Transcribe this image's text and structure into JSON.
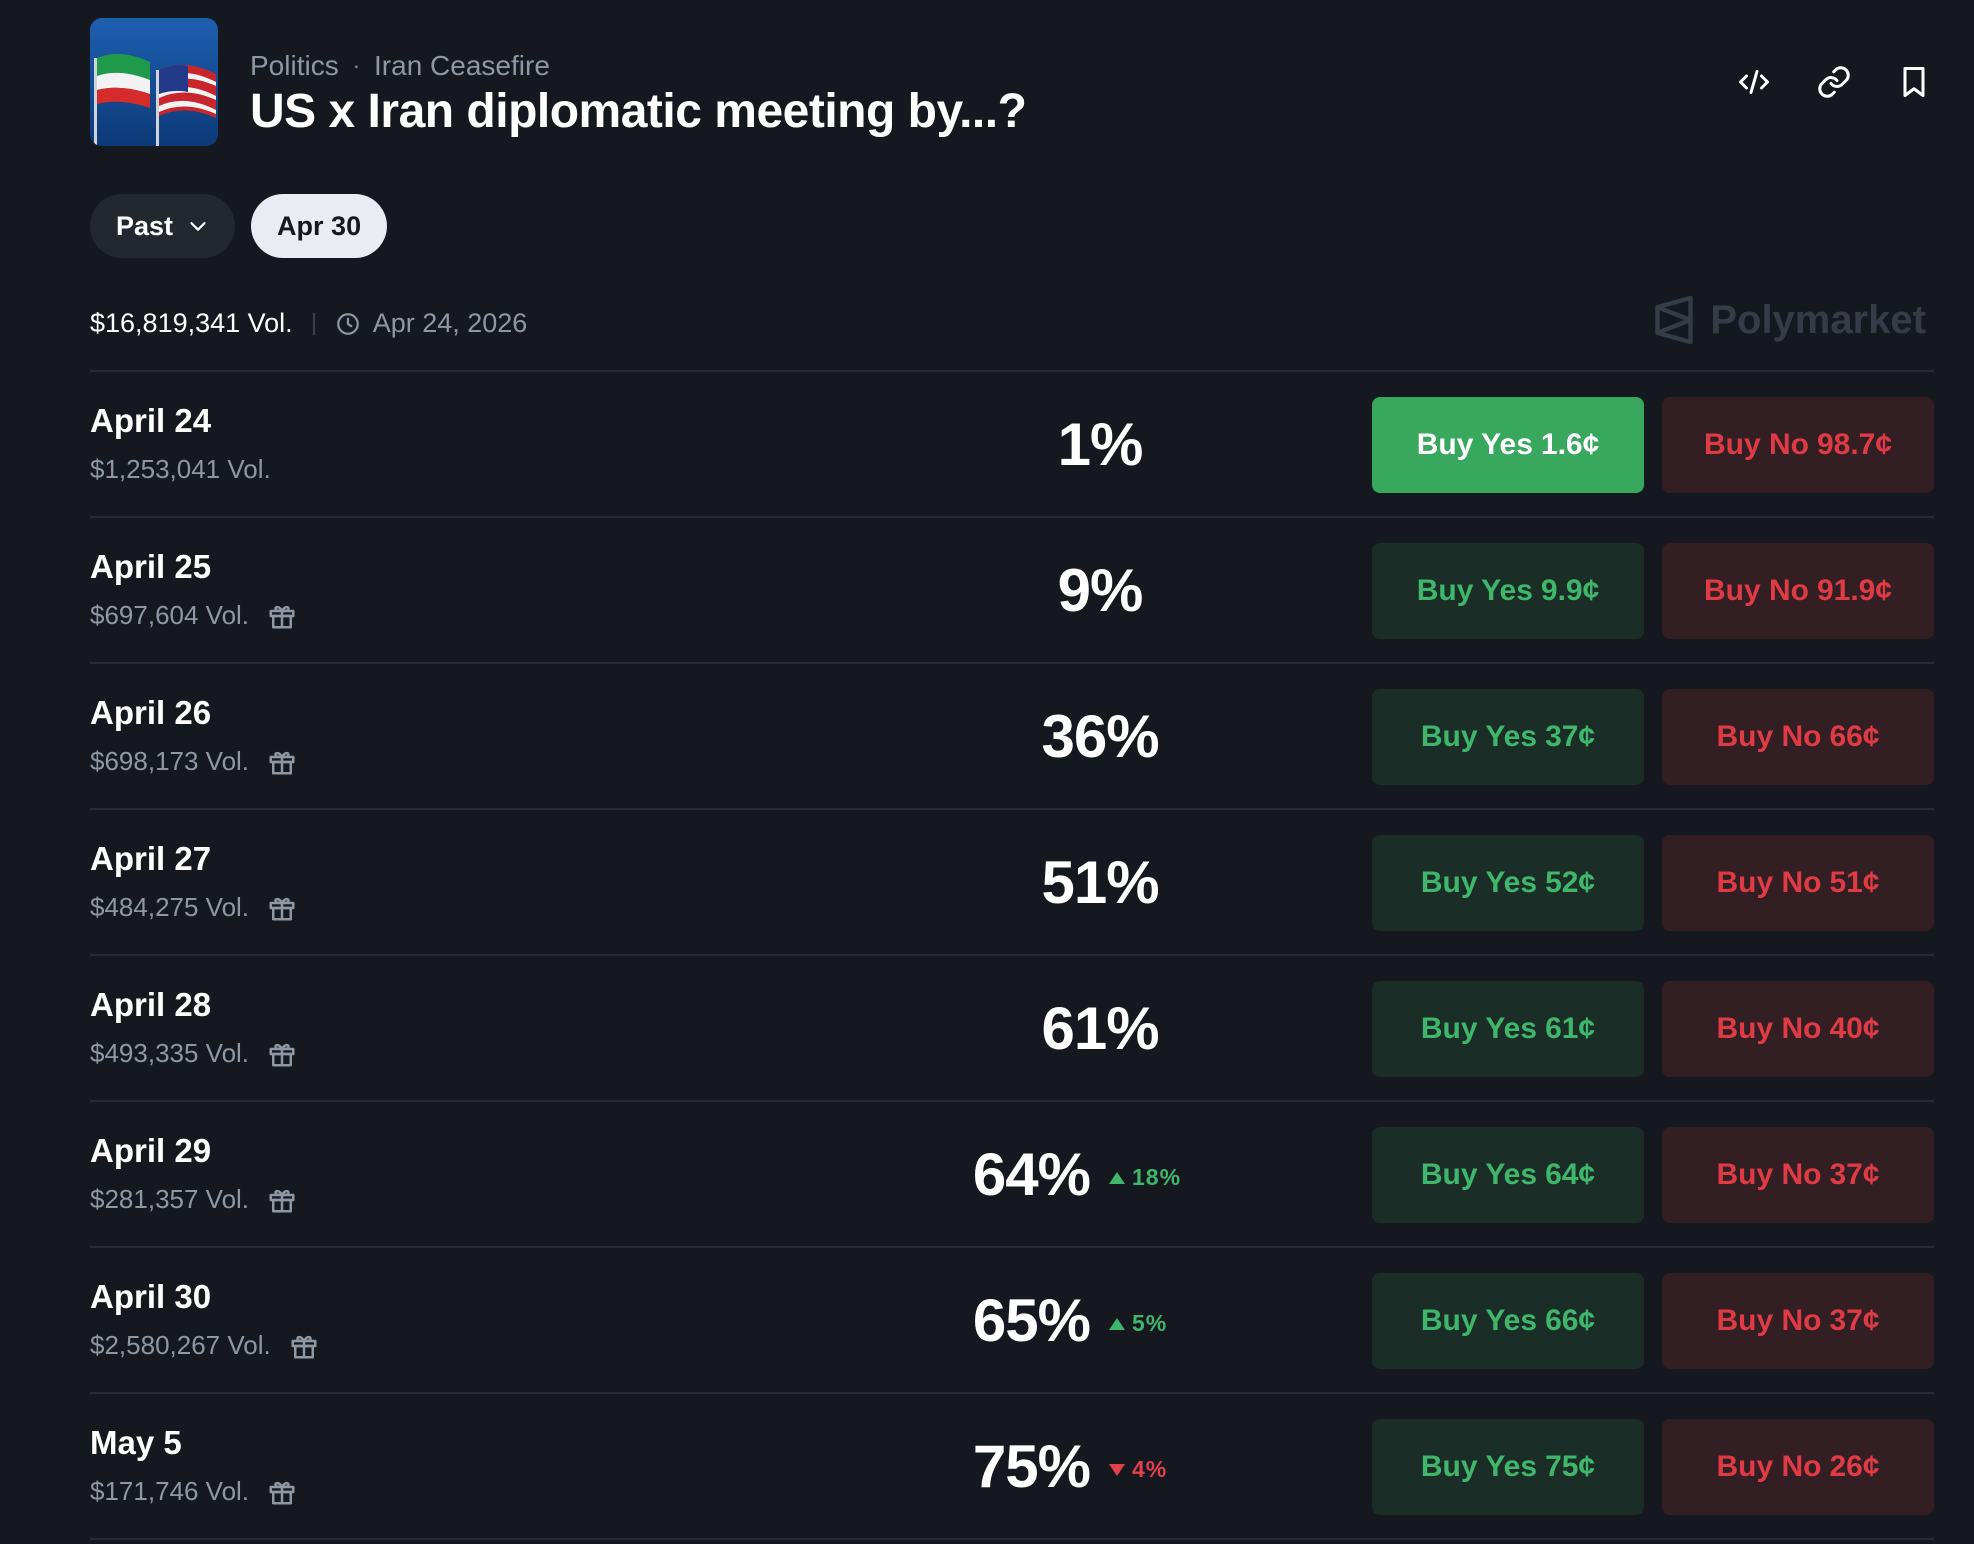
{
  "breadcrumb": {
    "category": "Politics",
    "subcategory": "Iran Ceasefire"
  },
  "title": "US x Iran diplomatic meeting by...?",
  "filters": {
    "past_label": "Past",
    "selected_label": "Apr 30"
  },
  "meta": {
    "volume": "$16,819,341 Vol.",
    "date": "Apr 24, 2026"
  },
  "brand": "Polymarket",
  "rows": [
    {
      "label": "April 24",
      "volume": "$1,253,041 Vol.",
      "prob": "1%",
      "change": "",
      "yes_price": "1.6¢",
      "no_price": "98.7¢"
    },
    {
      "label": "April 25",
      "volume": "$697,604 Vol.",
      "prob": "9%",
      "change": "",
      "yes_price": "9.9¢",
      "no_price": "91.9¢"
    },
    {
      "label": "April 26",
      "volume": "$698,173 Vol.",
      "prob": "36%",
      "change": "",
      "yes_price": "37¢",
      "no_price": "66¢"
    },
    {
      "label": "April 27",
      "volume": "$484,275 Vol.",
      "prob": "51%",
      "change": "",
      "yes_price": "52¢",
      "no_price": "51¢"
    },
    {
      "label": "April 28",
      "volume": "$493,335 Vol.",
      "prob": "61%",
      "change": "",
      "yes_price": "61¢",
      "no_price": "40¢"
    },
    {
      "label": "April 29",
      "volume": "$281,357 Vol.",
      "prob": "64%",
      "change": "18%",
      "yes_price": "64¢",
      "no_price": "37¢"
    },
    {
      "label": "April 30",
      "volume": "$2,580,267 Vol.",
      "prob": "65%",
      "change": "5%",
      "yes_price": "66¢",
      "no_price": "37¢"
    },
    {
      "label": "May 5",
      "volume": "$171,746 Vol.",
      "prob": "75%",
      "change": "4%",
      "yes_price": "75¢",
      "no_price": "26¢"
    }
  ],
  "buttons": {
    "yes_prefix": "Buy Yes",
    "no_prefix": "Buy No"
  },
  "colors": {
    "yes": "#3fb66a",
    "no": "#df3b44",
    "background": "#15191f"
  },
  "icons": [
    "embed-code-icon",
    "link-icon",
    "bookmark-icon",
    "chevron-down-icon",
    "clock-icon",
    "polymarket-logo-icon",
    "gift-icon",
    "arrow-up-icon",
    "arrow-down-icon"
  ]
}
